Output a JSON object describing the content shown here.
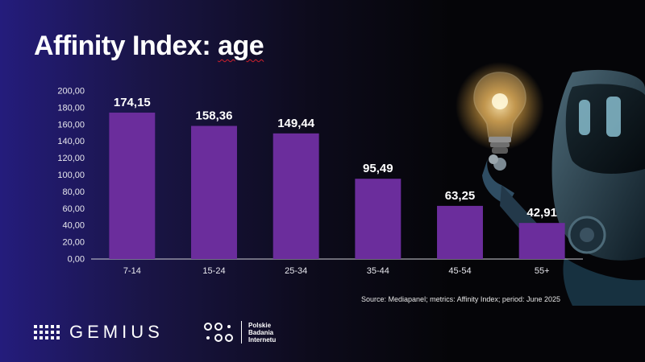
{
  "header": {
    "title_prefix": "Affinity Index: ",
    "title_keyword": "age"
  },
  "source": "Source: Mediapanel; metrics: Affinity Index; period: June 2025",
  "logos": {
    "gemius": "GEMIUS",
    "pbi": [
      "Polskie",
      "Badania",
      "Internetu"
    ]
  },
  "colors": {
    "bar": "#6b2d9c",
    "accent_red": "#d0202c"
  },
  "chart_data": {
    "type": "bar",
    "categories": [
      "7-14",
      "15-24",
      "25-34",
      "35-44",
      "45-54",
      "55+"
    ],
    "values": [
      174.15,
      158.36,
      149.44,
      95.49,
      63.25,
      42.91
    ],
    "data_labels": [
      "174,15",
      "158,36",
      "149,44",
      "95,49",
      "63,25",
      "42,91"
    ],
    "ylim": [
      0,
      200
    ],
    "yticks": [
      "0,00",
      "20,00",
      "40,00",
      "60,00",
      "80,00",
      "100,00",
      "120,00",
      "140,00",
      "160,00",
      "180,00",
      "200,00"
    ],
    "grid": false,
    "legend": "none"
  }
}
